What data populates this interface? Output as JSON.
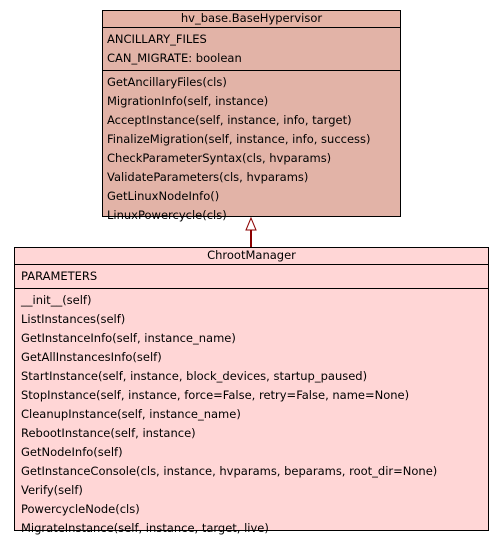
{
  "base_class": {
    "name": "hv_base.BaseHypervisor",
    "attributes": [
      "ANCILLARY_FILES",
      "CAN_MIGRATE: boolean"
    ],
    "methods": [
      "GetAncillaryFiles(cls)",
      "MigrationInfo(self, instance)",
      "AcceptInstance(self, instance, info, target)",
      "FinalizeMigration(self, instance, info, success)",
      "CheckParameterSyntax(cls, hvparams)",
      "ValidateParameters(cls, hvparams)",
      "GetLinuxNodeInfo()",
      "LinuxPowercycle(cls)"
    ],
    "color": "#e2b3a7"
  },
  "derived_class": {
    "name": "ChrootManager",
    "attributes": [
      "PARAMETERS"
    ],
    "methods": [
      "__init__(self)",
      "ListInstances(self)",
      "GetInstanceInfo(self, instance_name)",
      "GetAllInstancesInfo(self)",
      "StartInstance(self, instance, block_devices, startup_paused)",
      "StopInstance(self, instance, force=False, retry=False, name=None)",
      "CleanupInstance(self, instance_name)",
      "RebootInstance(self, instance)",
      "GetNodeInfo(self)",
      "GetInstanceConsole(cls, instance, hvparams, beparams, root_dir=None)",
      "Verify(self)",
      "PowercycleNode(cls)",
      "MigrateInstance(self, instance, target, live)"
    ],
    "color": "#ffd6d6"
  },
  "edge": {
    "type": "inheritance",
    "color": "#8b0000"
  }
}
